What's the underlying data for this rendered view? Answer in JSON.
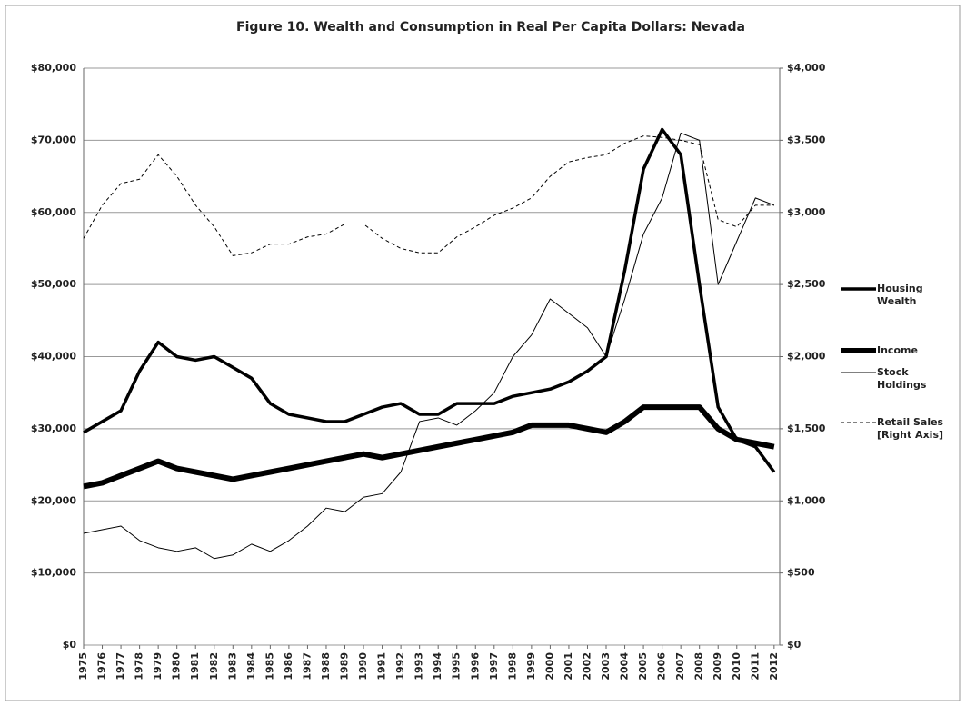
{
  "chart_data": {
    "type": "line",
    "title": "Figure 10. Wealth and Consumption in Real Per Capita Dollars: Nevada",
    "x": [
      1975,
      1976,
      1977,
      1978,
      1979,
      1980,
      1981,
      1982,
      1983,
      1984,
      1985,
      1986,
      1987,
      1988,
      1989,
      1990,
      1991,
      1992,
      1993,
      1994,
      1995,
      1996,
      1997,
      1998,
      1999,
      2000,
      2001,
      2002,
      2003,
      2004,
      2005,
      2006,
      2007,
      2008,
      2009,
      2010,
      2011,
      2012
    ],
    "xlim": [
      1975,
      2012.3
    ],
    "xticks": [
      1975,
      1976,
      1977,
      1978,
      1979,
      1980,
      1981,
      1982,
      1983,
      1984,
      1985,
      1986,
      1987,
      1988,
      1989,
      1990,
      1991,
      1992,
      1993,
      1994,
      1995,
      1996,
      1997,
      1998,
      1999,
      2000,
      2001,
      2002,
      2003,
      2004,
      2005,
      2006,
      2007,
      2008,
      2009,
      2010,
      2011,
      2012
    ],
    "ylim": [
      0,
      80000
    ],
    "yticks": [
      {
        "value": 0,
        "label": "$0"
      },
      {
        "value": 10000,
        "label": "$10,000"
      },
      {
        "value": 20000,
        "label": "$20,000"
      },
      {
        "value": 30000,
        "label": "$30,000"
      },
      {
        "value": 40000,
        "label": "$40,000"
      },
      {
        "value": 50000,
        "label": "$50,000"
      },
      {
        "value": 60000,
        "label": "$60,000"
      },
      {
        "value": 70000,
        "label": "$70,000"
      },
      {
        "value": 80000,
        "label": "$80,000"
      }
    ],
    "y2lim": [
      0,
      4000
    ],
    "y2ticks": [
      {
        "value": 0,
        "label": "$0"
      },
      {
        "value": 500,
        "label": "$500"
      },
      {
        "value": 1000,
        "label": "$1,000"
      },
      {
        "value": 1500,
        "label": "$1,500"
      },
      {
        "value": 2000,
        "label": "$2,000"
      },
      {
        "value": 2500,
        "label": "$2,500"
      },
      {
        "value": 3000,
        "label": "$3,000"
      },
      {
        "value": 3500,
        "label": "$3,500"
      },
      {
        "value": 4000,
        "label": "$4,000"
      }
    ],
    "grid": true,
    "legend": "right",
    "series": [
      {
        "name": "Housing Wealth",
        "color": "#000000",
        "line_width": 3.5,
        "dashed": false,
        "values": [
          29500,
          31000,
          32500,
          38000,
          42000,
          40000,
          39500,
          40000,
          38500,
          37000,
          33500,
          32000,
          31500,
          31000,
          31000,
          32000,
          33000,
          33500,
          32000,
          32000,
          33500,
          33500,
          33500,
          34500,
          35000,
          35500,
          36500,
          38000,
          40000,
          52000,
          66000,
          71500,
          68000,
          50000,
          33000,
          28500,
          27500,
          24000
        ]
      },
      {
        "name": "Income",
        "color": "#000000",
        "line_width": 6,
        "dashed": false,
        "values": [
          22000,
          22500,
          23500,
          24500,
          25500,
          24500,
          24000,
          23500,
          23000,
          23500,
          24000,
          24500,
          25000,
          25500,
          26000,
          26500,
          26000,
          26500,
          27000,
          27500,
          28000,
          28500,
          29000,
          29500,
          30500,
          30500,
          30500,
          30000,
          29500,
          31000,
          33000,
          33000,
          33000,
          33000,
          30000,
          28500,
          28000,
          27500
        ]
      },
      {
        "name": "Stock Holdings",
        "color": "#000000",
        "line_width": 1,
        "dashed": false,
        "values": [
          15500,
          16000,
          16500,
          14500,
          13500,
          13000,
          13500,
          12000,
          12500,
          14000,
          13000,
          14500,
          16500,
          19000,
          18500,
          20500,
          21000,
          24000,
          31000,
          31500,
          30500,
          32500,
          35000,
          40000,
          43000,
          48000,
          46000,
          44000,
          40000,
          48000,
          57000,
          62000,
          71000,
          70000,
          50000,
          56000,
          62000,
          61000
        ]
      },
      {
        "name": "Retail Sales [Right Axis]",
        "color": "#000000",
        "line_width": 1,
        "dashed": true,
        "axis": "y2",
        "values": [
          2820,
          3050,
          3200,
          3230,
          3400,
          3250,
          3050,
          2900,
          2700,
          2720,
          2780,
          2780,
          2830,
          2850,
          2920,
          2920,
          2820,
          2750,
          2720,
          2720,
          2830,
          2900,
          2980,
          3030,
          3100,
          3250,
          3350,
          3380,
          3400,
          3480,
          3530,
          3520,
          3500,
          3470,
          2950,
          2900,
          3050,
          3050
        ]
      }
    ]
  }
}
